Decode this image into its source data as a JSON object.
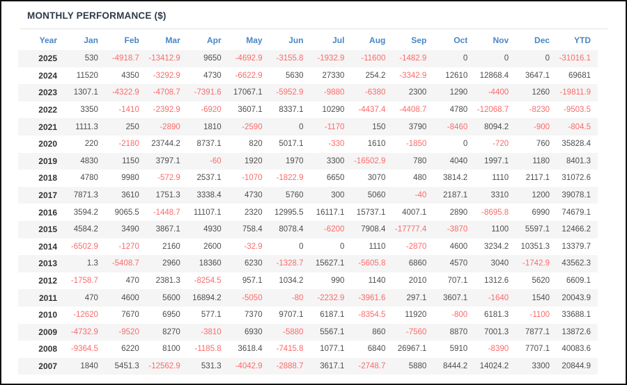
{
  "title": "MONTHLY PERFORMANCE ($)",
  "chart_data": {
    "type": "table",
    "title": "MONTHLY PERFORMANCE ($)",
    "columns": [
      "Year",
      "Jan",
      "Feb",
      "Mar",
      "Apr",
      "May",
      "Jun",
      "Jul",
      "Aug",
      "Sep",
      "Oct",
      "Nov",
      "Dec",
      "YTD"
    ],
    "rows": [
      [
        "2025",
        "530",
        "-4918.7",
        "-13412.9",
        "9650",
        "-4692.9",
        "-3155.8",
        "-1932.9",
        "-11600",
        "-1482.9",
        "0",
        "0",
        "0",
        "-31016.1"
      ],
      [
        "2024",
        "11520",
        "4350",
        "-3292.9",
        "4730",
        "-6622.9",
        "5630",
        "27330",
        "254.2",
        "-3342.9",
        "12610",
        "12868.4",
        "3647.1",
        "69681"
      ],
      [
        "2023",
        "1307.1",
        "-4322.9",
        "-4708.7",
        "-7391.6",
        "17067.1",
        "-5952.9",
        "-9880",
        "-6380",
        "2300",
        "1290",
        "-4400",
        "1260",
        "-19811.9"
      ],
      [
        "2022",
        "3350",
        "-1410",
        "-2392.9",
        "-6920",
        "3607.1",
        "8337.1",
        "10290",
        "-4437.4",
        "-4408.7",
        "4780",
        "-12068.7",
        "-8230",
        "-9503.5"
      ],
      [
        "2021",
        "1111.3",
        "250",
        "-2890",
        "1810",
        "-2590",
        "0",
        "-1170",
        "150",
        "3790",
        "-8460",
        "8094.2",
        "-900",
        "-804.5"
      ],
      [
        "2020",
        "220",
        "-2180",
        "23744.2",
        "8737.1",
        "820",
        "5017.1",
        "-330",
        "1610",
        "-1850",
        "0",
        "-720",
        "760",
        "35828.4"
      ],
      [
        "2019",
        "4830",
        "1150",
        "3797.1",
        "-60",
        "1920",
        "1970",
        "3300",
        "-16502.9",
        "780",
        "4040",
        "1997.1",
        "1180",
        "8401.3"
      ],
      [
        "2018",
        "4780",
        "9980",
        "-572.9",
        "2537.1",
        "-1070",
        "-1822.9",
        "6650",
        "3070",
        "480",
        "3814.2",
        "1110",
        "2117.1",
        "31072.6"
      ],
      [
        "2017",
        "7871.3",
        "3610",
        "1751.3",
        "3338.4",
        "4730",
        "5760",
        "300",
        "5060",
        "-40",
        "2187.1",
        "3310",
        "1200",
        "39078.1"
      ],
      [
        "2016",
        "3594.2",
        "9065.5",
        "-1448.7",
        "11107.1",
        "2320",
        "12995.5",
        "16117.1",
        "15737.1",
        "4007.1",
        "2890",
        "-8695.8",
        "6990",
        "74679.1"
      ],
      [
        "2015",
        "4584.2",
        "3490",
        "3867.1",
        "4930",
        "758.4",
        "8078.4",
        "-6200",
        "7908.4",
        "-17777.4",
        "-3870",
        "1100",
        "5597.1",
        "12466.2"
      ],
      [
        "2014",
        "-6502.9",
        "-1270",
        "2160",
        "2600",
        "-32.9",
        "0",
        "0",
        "1110",
        "-2870",
        "4600",
        "3234.2",
        "10351.3",
        "13379.7"
      ],
      [
        "2013",
        "1.3",
        "-5408.7",
        "2960",
        "18360",
        "6230",
        "-1328.7",
        "15627.1",
        "-5605.8",
        "6860",
        "4570",
        "3040",
        "-1742.9",
        "43562.3"
      ],
      [
        "2012",
        "-1758.7",
        "470",
        "2381.3",
        "-8254.5",
        "957.1",
        "1034.2",
        "990",
        "1140",
        "2010",
        "707.1",
        "1312.6",
        "5620",
        "6609.1"
      ],
      [
        "2011",
        "470",
        "4600",
        "5600",
        "16894.2",
        "-5050",
        "-80",
        "-2232.9",
        "-3961.6",
        "297.1",
        "3607.1",
        "-1640",
        "1540",
        "20043.9"
      ],
      [
        "2010",
        "-12620",
        "7670",
        "6950",
        "577.1",
        "7370",
        "9707.1",
        "6187.1",
        "-8354.5",
        "11920",
        "-800",
        "6181.3",
        "-1100",
        "33688.1"
      ],
      [
        "2009",
        "-4732.9",
        "-9520",
        "8270",
        "-3810",
        "6930",
        "-5880",
        "5567.1",
        "860",
        "-7560",
        "8870",
        "7001.3",
        "7877.1",
        "13872.6"
      ],
      [
        "2008",
        "-9364.5",
        "6220",
        "8100",
        "-1185.8",
        "3618.4",
        "-7415.8",
        "1077.1",
        "6840",
        "26967.1",
        "5910",
        "-8390",
        "7707.1",
        "40083.6"
      ],
      [
        "2007",
        "1840",
        "5451.3",
        "-12562.9",
        "531.3",
        "-4042.9",
        "-2888.7",
        "3617.1",
        "-2748.7",
        "5880",
        "8444.2",
        "14024.2",
        "3300",
        "20844.9"
      ]
    ]
  },
  "colors": {
    "title_text": "#2f3a48",
    "header_text": "#4a86c6",
    "value_text": "#4d4d4d",
    "negative_text": "#fb6a6a",
    "year_text": "#333333",
    "alt_row_bg": "#f5f5f5",
    "divider": "#e3e3e3",
    "frame_border": "#111111"
  }
}
